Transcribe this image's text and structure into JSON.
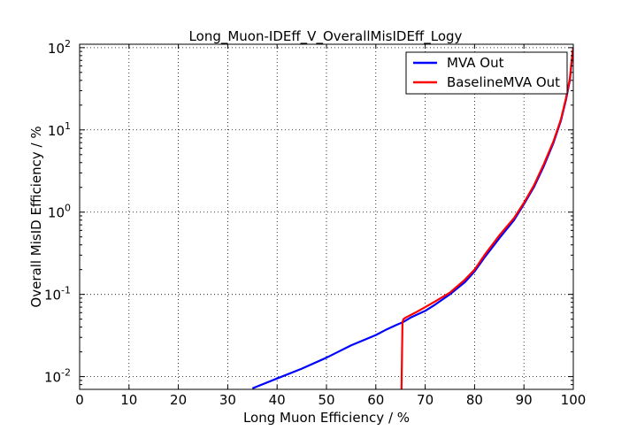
{
  "chart_data": {
    "type": "line",
    "title": "Long_Muon-IDEff_V_OverallMisIDEff_Logy",
    "xlabel": "Long Muon Efficiency / %",
    "ylabel": "Overall MisID Efficiency / %",
    "xlim": [
      0,
      100
    ],
    "ylim": [
      0.007,
      110
    ],
    "yscale": "log",
    "grid": true,
    "legend_position": "top-right",
    "x_ticks": [
      "0",
      "10",
      "20",
      "30",
      "40",
      "50",
      "60",
      "70",
      "80",
      "90",
      "100"
    ],
    "y_ticks": [
      {
        "value": 0.01,
        "base": "10",
        "exp": "-2"
      },
      {
        "value": 0.1,
        "base": "10",
        "exp": "-1"
      },
      {
        "value": 1,
        "base": "10",
        "exp": "0"
      },
      {
        "value": 10,
        "base": "10",
        "exp": "1"
      },
      {
        "value": 100,
        "base": "10",
        "exp": "2"
      }
    ],
    "series": [
      {
        "name": "MVA Out",
        "color": "#0000ff",
        "x": [
          35,
          40,
          45,
          50,
          55,
          60,
          62,
          64,
          65.5,
          67,
          70,
          72,
          75,
          78,
          80,
          82,
          85,
          88,
          90,
          92,
          94,
          96,
          97.5,
          98.5,
          99.3,
          99.7,
          100
        ],
        "y": [
          0.0072,
          0.0095,
          0.0125,
          0.017,
          0.024,
          0.032,
          0.037,
          0.042,
          0.046,
          0.052,
          0.063,
          0.075,
          0.1,
          0.14,
          0.19,
          0.28,
          0.48,
          0.8,
          1.25,
          2.0,
          3.6,
          7.0,
          13,
          23,
          40,
          70,
          100
        ]
      },
      {
        "name": "BaselineMVA Out",
        "color": "#ff0000",
        "x": [
          65.2,
          65.4,
          65.6,
          66,
          68,
          70,
          72,
          75,
          78,
          80,
          82,
          85,
          88,
          90,
          92,
          94,
          96,
          97.5,
          98.5,
          99.3,
          99.7,
          100
        ],
        "y": [
          0.007,
          0.046,
          0.05,
          0.052,
          0.06,
          0.07,
          0.082,
          0.105,
          0.15,
          0.2,
          0.3,
          0.52,
          0.85,
          1.3,
          2.1,
          3.8,
          7.3,
          13.5,
          24,
          42,
          72,
          100
        ]
      }
    ]
  }
}
